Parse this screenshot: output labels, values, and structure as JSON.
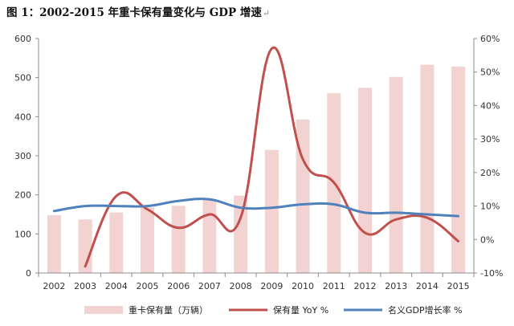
{
  "title": "图 1：2002-2015 年重卡保有量变化与 GDP 增速",
  "title_mark": "↵",
  "chart_data": {
    "type": "bar",
    "categories": [
      "2002",
      "2003",
      "2004",
      "2005",
      "2006",
      "2007",
      "2008",
      "2009",
      "2010",
      "2011",
      "2012",
      "2013",
      "2014",
      "2015"
    ],
    "series": [
      {
        "name": "重卡保有量（万辆）",
        "type": "bar",
        "axis": "left",
        "color": "#f2d3d2",
        "values": [
          148,
          137,
          155,
          168,
          172,
          188,
          198,
          315,
          393,
          460,
          474,
          502,
          533,
          528
        ]
      },
      {
        "name": "保有量 YoY %",
        "type": "line",
        "axis": "right",
        "color": "#c0504d",
        "values": [
          null,
          -8,
          13,
          9,
          3.5,
          7.5,
          6.5,
          57,
          24,
          17,
          2,
          6,
          6.5,
          -0.5
        ]
      },
      {
        "name": "名义GDP增长率 %",
        "type": "line",
        "axis": "right",
        "color": "#4f81bd",
        "values": [
          8.5,
          10,
          10,
          10,
          11.5,
          12,
          9.5,
          9.5,
          10.5,
          10.5,
          8,
          8,
          7.5,
          7
        ]
      }
    ],
    "y_left": {
      "ylim": [
        0,
        600
      ],
      "ticks": [
        "0",
        "100",
        "200",
        "300",
        "400",
        "500",
        "600"
      ]
    },
    "y_right": {
      "ylim": [
        -10,
        60
      ],
      "ticks": [
        "-10%",
        "0%",
        "10%",
        "20%",
        "30%",
        "40%",
        "50%",
        "60%"
      ]
    },
    "grid": false,
    "legend_position": "bottom"
  }
}
